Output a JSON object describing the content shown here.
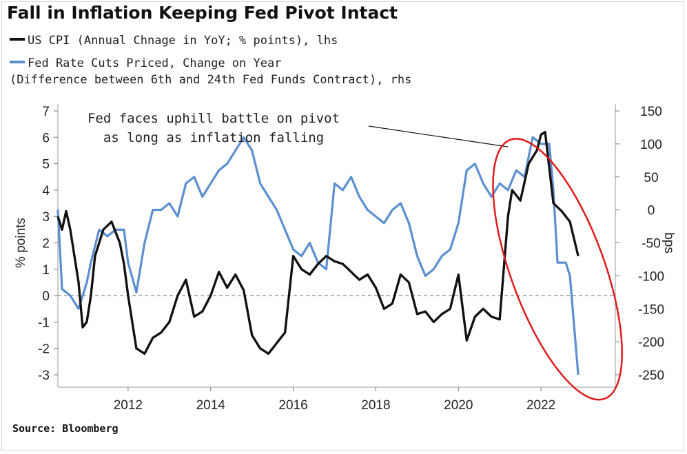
{
  "title": "Fall in Inflation Keeping Fed Pivot Intact",
  "legend": {
    "series1": "US CPI (Annual Chnage in YoY; % points), lhs",
    "series2_line1": "Fed Rate Cuts Priced, Change on Year",
    "series2_line2": "(Difference between 6th and 24th Fed Funds Contract), rhs"
  },
  "source": "Source: Bloomberg",
  "colors": {
    "cpi": "#111111",
    "fed": "#5b8fd0",
    "ellipse": "#e01a1a",
    "zero": "#9a9a9a"
  },
  "chart_data": {
    "type": "line",
    "title": "Fall in Inflation Keeping Fed Pivot Intact",
    "y_left": {
      "label": "% points",
      "range": [
        -3,
        7
      ],
      "ticks": [
        -3,
        -2,
        -1,
        0,
        1,
        2,
        3,
        4,
        5,
        6,
        7
      ]
    },
    "y_right": {
      "label": "bps",
      "range": [
        -250,
        150
      ],
      "ticks": [
        -250,
        -200,
        -150,
        -100,
        -50,
        0,
        50,
        100,
        150
      ]
    },
    "x_axis": {
      "range": [
        2010.3,
        2023.8
      ],
      "ticks": [
        2012,
        2014,
        2016,
        2018,
        2020,
        2022
      ]
    },
    "grid": false,
    "zero_line": "dashed at 0 on lhs",
    "annotation": {
      "line1": "Fed faces uphill battle on pivot",
      "line2": "as long as inflation falling",
      "point_year": 2021.2,
      "point_value": 5.9,
      "axis": "lhs"
    },
    "highlight": "red ellipse around 2021–2023",
    "series": [
      {
        "name": "US CPI (Annual Chnage in YoY; % points), lhs",
        "axis": "left",
        "x": [
          2010.3,
          2010.4,
          2010.5,
          2010.6,
          2010.7,
          2010.8,
          2010.9,
          2011.0,
          2011.1,
          2011.2,
          2011.4,
          2011.6,
          2011.8,
          2011.9,
          2012.0,
          2012.2,
          2012.4,
          2012.6,
          2012.8,
          2013.0,
          2013.2,
          2013.4,
          2013.6,
          2013.8,
          2014.0,
          2014.2,
          2014.4,
          2014.6,
          2014.8,
          2015.0,
          2015.2,
          2015.4,
          2015.6,
          2015.8,
          2016.0,
          2016.2,
          2016.4,
          2016.6,
          2016.8,
          2017.0,
          2017.2,
          2017.4,
          2017.6,
          2017.8,
          2018.0,
          2018.2,
          2018.4,
          2018.6,
          2018.8,
          2019.0,
          2019.2,
          2019.4,
          2019.6,
          2019.8,
          2020.0,
          2020.2,
          2020.4,
          2020.6,
          2020.8,
          2021.0,
          2021.2,
          2021.3,
          2021.5,
          2021.7,
          2021.9,
          2022.0,
          2022.1,
          2022.3,
          2022.5,
          2022.7,
          2022.9
        ],
        "values": [
          3.0,
          2.5,
          3.2,
          2.5,
          1.5,
          0.5,
          -1.2,
          -1.0,
          0.0,
          1.5,
          2.5,
          2.8,
          2.0,
          1.2,
          0.0,
          -2.0,
          -2.2,
          -1.6,
          -1.4,
          -1.0,
          0.0,
          0.6,
          -0.8,
          -0.6,
          0.0,
          0.9,
          0.3,
          0.8,
          0.2,
          -1.5,
          -2.0,
          -2.2,
          -1.8,
          -1.4,
          1.5,
          1.0,
          0.8,
          1.2,
          1.5,
          1.3,
          1.2,
          0.9,
          0.6,
          0.8,
          0.3,
          -0.5,
          -0.3,
          0.8,
          0.5,
          -0.7,
          -0.6,
          -1.0,
          -0.7,
          -0.5,
          0.8,
          -1.7,
          -0.8,
          -0.5,
          -0.8,
          -0.9,
          3.0,
          4.0,
          3.6,
          5.0,
          5.5,
          6.1,
          6.2,
          3.5,
          3.2,
          2.8,
          1.5
        ]
      },
      {
        "name": "Fed Rate Cuts Priced, Change on Year (Difference between 6th and 24th Fed Funds Contract), rhs",
        "axis": "right",
        "x": [
          2010.3,
          2010.4,
          2010.6,
          2010.8,
          2010.9,
          2011.0,
          2011.1,
          2011.3,
          2011.5,
          2011.7,
          2011.9,
          2012.0,
          2012.2,
          2012.4,
          2012.6,
          2012.8,
          2013.0,
          2013.2,
          2013.4,
          2013.6,
          2013.8,
          2014.0,
          2014.2,
          2014.4,
          2014.6,
          2014.8,
          2015.0,
          2015.2,
          2015.4,
          2015.6,
          2015.8,
          2016.0,
          2016.2,
          2016.4,
          2016.6,
          2016.8,
          2017.0,
          2017.2,
          2017.4,
          2017.6,
          2017.8,
          2018.0,
          2018.2,
          2018.4,
          2018.6,
          2018.8,
          2019.0,
          2019.2,
          2019.4,
          2019.6,
          2019.8,
          2020.0,
          2020.2,
          2020.4,
          2020.6,
          2020.8,
          2021.0,
          2021.2,
          2021.4,
          2021.6,
          2021.8,
          2022.0,
          2022.2,
          2022.3,
          2022.4,
          2022.6,
          2022.7,
          2022.9
        ],
        "values": [
          0,
          -120,
          -130,
          -150,
          -130,
          -110,
          -80,
          -30,
          -40,
          -30,
          -30,
          -80,
          -125,
          -50,
          0,
          0,
          10,
          -10,
          40,
          50,
          20,
          40,
          60,
          70,
          90,
          110,
          90,
          40,
          20,
          0,
          -30,
          -60,
          -70,
          -50,
          -80,
          -90,
          40,
          30,
          50,
          20,
          0,
          -10,
          -20,
          0,
          10,
          -20,
          -70,
          -100,
          -90,
          -70,
          -60,
          -20,
          60,
          70,
          40,
          20,
          40,
          30,
          60,
          50,
          110,
          100,
          100,
          30,
          -80,
          -80,
          -100,
          -250
        ]
      }
    ]
  }
}
